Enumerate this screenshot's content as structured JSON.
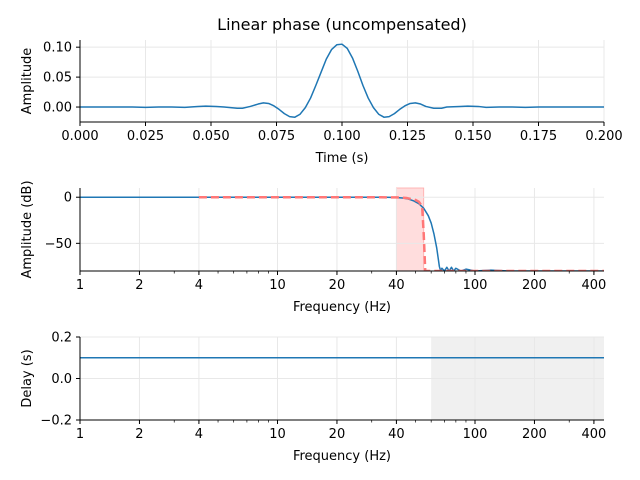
{
  "chart_data": [
    {
      "type": "line",
      "title": "Linear phase (uncompensated)",
      "xlabel": "Time (s)",
      "ylabel": "Amplitude",
      "xlim": [
        0,
        0.2
      ],
      "ylim": [
        -0.025,
        0.112
      ],
      "xticks": [
        0.0,
        0.025,
        0.05,
        0.075,
        0.1,
        0.125,
        0.15,
        0.175,
        0.2
      ],
      "xtick_labels": [
        "0.000",
        "0.025",
        "0.050",
        "0.075",
        "0.100",
        "0.125",
        "0.150",
        "0.175",
        "0.200"
      ],
      "yticks": [
        0.0,
        0.05,
        0.1
      ],
      "ytick_labels": [
        "0.00",
        "0.05",
        "0.10"
      ],
      "grid": true,
      "series": [
        {
          "color": "#1f77b4",
          "x": [
            0,
            0.005,
            0.01,
            0.015,
            0.02,
            0.025,
            0.03,
            0.035,
            0.04,
            0.045,
            0.048,
            0.052,
            0.055,
            0.06,
            0.062,
            0.065,
            0.068,
            0.07,
            0.072,
            0.074,
            0.076,
            0.078,
            0.08,
            0.082,
            0.084,
            0.086,
            0.088,
            0.09,
            0.092,
            0.094,
            0.096,
            0.098,
            0.1,
            0.102,
            0.104,
            0.106,
            0.108,
            0.11,
            0.112,
            0.114,
            0.116,
            0.118,
            0.12,
            0.122,
            0.124,
            0.126,
            0.128,
            0.13,
            0.132,
            0.135,
            0.138,
            0.14,
            0.145,
            0.148,
            0.152,
            0.155,
            0.16,
            0.165,
            0.17,
            0.175,
            0.18,
            0.185,
            0.19,
            0.195,
            0.2
          ],
          "y": [
            0.0,
            0.0,
            0.0,
            0.0,
            0.0,
            -0.0005,
            0.0,
            0.0,
            -0.0005,
            0.001,
            0.0015,
            0.001,
            0.0,
            -0.002,
            -0.002,
            0.001,
            0.005,
            0.007,
            0.006,
            0.002,
            -0.004,
            -0.011,
            -0.016,
            -0.017,
            -0.012,
            -0.001,
            0.015,
            0.036,
            0.058,
            0.08,
            0.096,
            0.104,
            0.105,
            0.098,
            0.082,
            0.06,
            0.036,
            0.015,
            -0.001,
            -0.012,
            -0.017,
            -0.016,
            -0.011,
            -0.004,
            0.002,
            0.006,
            0.007,
            0.005,
            0.001,
            -0.002,
            -0.002,
            0.0,
            0.001,
            0.0015,
            0.001,
            -0.0005,
            0.0,
            0.0,
            -0.0005,
            0.0,
            0.0,
            0.0,
            0.0,
            0.0,
            0.0
          ]
        }
      ]
    },
    {
      "type": "line",
      "xlabel": "Frequency (Hz)",
      "ylabel": "Amplitude (dB)",
      "xscale": "log",
      "xlim": [
        1,
        450
      ],
      "ylim": [
        -80,
        10
      ],
      "xticks": [
        1,
        2,
        4,
        10,
        20,
        40,
        100,
        200,
        400
      ],
      "xtick_labels": [
        "1",
        "2",
        "4",
        "10",
        "20",
        "40",
        "100",
        "200",
        "400"
      ],
      "yticks": [
        0,
        -50
      ],
      "ytick_labels": [
        "0",
        "−50"
      ],
      "grid": true,
      "shaded_band": {
        "x": [
          40,
          55
        ],
        "color": "#ffdddd"
      },
      "series": [
        {
          "style": "solid",
          "color": "#1f77b4",
          "x": [
            1,
            5,
            10,
            20,
            30,
            35,
            40,
            43,
            46,
            49,
            52,
            55,
            58,
            60,
            62,
            64,
            65,
            66,
            67,
            68,
            70,
            72,
            74,
            76,
            78,
            80,
            85,
            90,
            100,
            120,
            150,
            200,
            300,
            450
          ],
          "y": [
            0,
            0,
            0,
            0,
            0,
            0,
            -0.3,
            -0.8,
            -2,
            -4,
            -7,
            -12,
            -20,
            -28,
            -40,
            -55,
            -65,
            -75,
            -80,
            -77,
            -80,
            -76,
            -80,
            -76,
            -80,
            -77,
            -80,
            -78,
            -80,
            -79,
            -80,
            -80,
            -80,
            -80
          ]
        },
        {
          "style": "dashed",
          "color": "#ff7777",
          "x": [
            4,
            10,
            20,
            30,
            40,
            45,
            50,
            52,
            54,
            55,
            56,
            60,
            100,
            200,
            300,
            450
          ],
          "y": [
            0,
            0,
            0,
            0,
            -0.2,
            -0.8,
            -3,
            -5,
            -10,
            -40,
            -80,
            -80,
            -80,
            -80,
            -80,
            -80
          ]
        }
      ]
    },
    {
      "type": "line",
      "xlabel": "Frequency (Hz)",
      "ylabel": "Delay (s)",
      "xscale": "log",
      "xlim": [
        1,
        450
      ],
      "ylim": [
        -0.2,
        0.2
      ],
      "xticks": [
        1,
        2,
        4,
        10,
        20,
        40,
        100,
        200,
        400
      ],
      "xtick_labels": [
        "1",
        "2",
        "4",
        "10",
        "20",
        "40",
        "100",
        "200",
        "400"
      ],
      "yticks": [
        -0.2,
        0.0,
        0.2
      ],
      "ytick_labels": [
        "−0.2",
        "0.0",
        "0.2"
      ],
      "grid": true,
      "shaded_band": {
        "x": [
          60,
          450
        ],
        "color": "#f0f0f0"
      },
      "series": [
        {
          "style": "solid",
          "color": "#1f77b4",
          "x": [
            1,
            450
          ],
          "y": [
            0.1,
            0.1
          ]
        }
      ]
    }
  ]
}
